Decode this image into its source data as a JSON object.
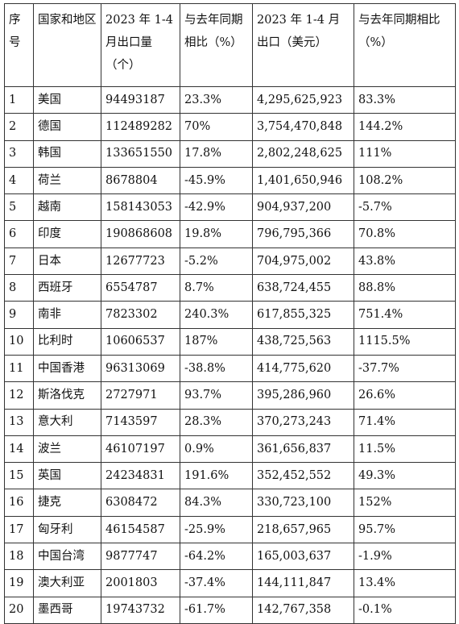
{
  "table": {
    "headers": [
      "序号",
      "国家和地区",
      "2023 年 1-4 月出口量（个）",
      "与去年同期相比（%）",
      "2023 年 1-4 月出口（美元）",
      "与去年同期相比（%）"
    ],
    "rows": [
      [
        "1",
        "美国",
        "94493187",
        "23.3%",
        "4,295,625,923",
        "83.3%"
      ],
      [
        "2",
        "德国",
        "112489282",
        "70%",
        "3,754,470,848",
        "144.2%"
      ],
      [
        "3",
        "韩国",
        "133651550",
        "17.8%",
        "2,802,248,625",
        "111%"
      ],
      [
        "4",
        "荷兰",
        "8678804",
        "-45.9%",
        "1,401,650,946",
        "108.2%"
      ],
      [
        "5",
        "越南",
        "158143053",
        "-42.9%",
        "904,937,200",
        "-5.7%"
      ],
      [
        "6",
        "印度",
        "190868608",
        "19.8%",
        "796,795,366",
        "70.8%"
      ],
      [
        "7",
        "日本",
        "12677723",
        "-5.2%",
        "704,975,002",
        "43.8%"
      ],
      [
        "8",
        "西班牙",
        "6554787",
        "8.7%",
        "638,724,455",
        "88.8%"
      ],
      [
        "9",
        "南非",
        "7823302",
        "240.3%",
        "617,855,325",
        "751.4%"
      ],
      [
        "10",
        "比利时",
        "10606537",
        "187%",
        "438,725,563",
        "1115.5%"
      ],
      [
        "11",
        "中国香港",
        "96313069",
        "-38.8%",
        "414,775,620",
        "-37.7%"
      ],
      [
        "12",
        "斯洛伐克",
        "2727971",
        "93.7%",
        "395,286,960",
        "26.6%"
      ],
      [
        "13",
        "意大利",
        "7143597",
        "28.3%",
        "370,273,243",
        "71.4%"
      ],
      [
        "14",
        "波兰",
        "46107197",
        "0.9%",
        "361,656,837",
        "11.5%"
      ],
      [
        "15",
        "英国",
        "24234831",
        "191.6%",
        "352,452,552",
        "49.3%"
      ],
      [
        "16",
        "捷克",
        "6308472",
        "84.3%",
        "330,723,100",
        "152%"
      ],
      [
        "17",
        "匈牙利",
        "46154587",
        "-25.9%",
        "218,657,965",
        "95.7%"
      ],
      [
        "18",
        "中国台湾",
        "9877747",
        "-64.2%",
        "165,003,637",
        "-1.9%"
      ],
      [
        "19",
        "澳大利亚",
        "2001803",
        "-37.4%",
        "144,111,847",
        "13.4%"
      ],
      [
        "20",
        "墨西哥",
        "19743732",
        "-61.7%",
        "142,767,358",
        "-0.1%"
      ]
    ]
  }
}
